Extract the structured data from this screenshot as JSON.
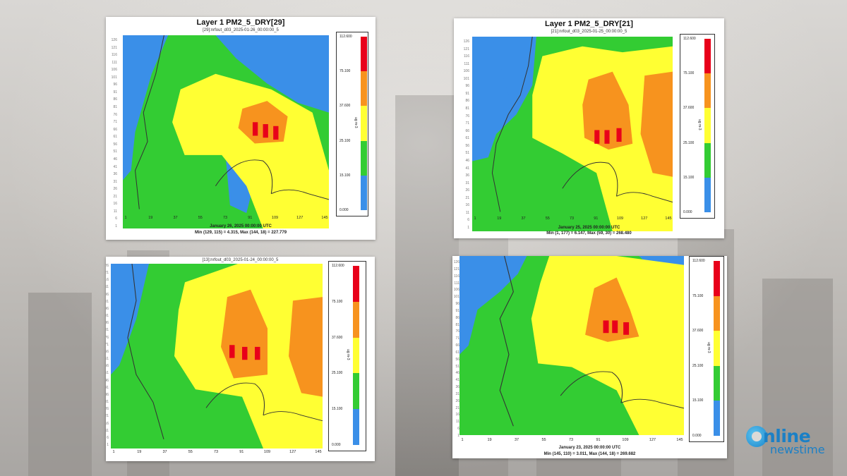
{
  "legend": {
    "levels": [
      "112.600",
      "75.100",
      "37.600",
      "25.100",
      "15.100",
      "0.000"
    ],
    "colors": [
      "#e8001a",
      "#f7931e",
      "#ffff33",
      "#33cc33",
      "#3a8fe8"
    ],
    "unit": "ug m-3"
  },
  "y_ticks": [
    "126",
    "121",
    "116",
    "111",
    "106",
    "101",
    "96",
    "91",
    "86",
    "81",
    "76",
    "71",
    "66",
    "61",
    "56",
    "51",
    "46",
    "41",
    "36",
    "31",
    "26",
    "21",
    "16",
    "11",
    "6",
    "1"
  ],
  "x_ticks": [
    "1",
    "19",
    "37",
    "55",
    "73",
    "91",
    "109",
    "127",
    "145"
  ],
  "panels": [
    {
      "title": "Layer 1 PM2_5_DRY[29]",
      "subtitle": "[29]:nrfout_d03_2025-01-26_00:00:00_5",
      "date": "January 26, 2025 00:00:00 UTC",
      "minmax": "Min (129, 115) = 4.315, Max (144, 18) = 227.779"
    },
    {
      "title": "Layer 1 PM2_5_DRY[21]",
      "subtitle": "[21]:nrfout_d03_2025-01-25_00:00:00_5",
      "date": "January 25, 2025 00:00:00 UTC",
      "minmax": "Min (1, 177) = 6.147, Max (59, 30) = 268.480"
    },
    {
      "title": "",
      "subtitle": "[13]:nrfout_d03_2025-01-24_00:00:00_5",
      "date": "",
      "minmax": ""
    },
    {
      "title": "",
      "subtitle": "",
      "date": "January 23, 2025 00:00:00 UTC",
      "minmax": "Min (145, 110) = 3.011, Max (144, 18) = 269.682"
    }
  ],
  "brand": {
    "line1": "nline",
    "line2": "newstime",
    "color": "#1b80c6"
  }
}
